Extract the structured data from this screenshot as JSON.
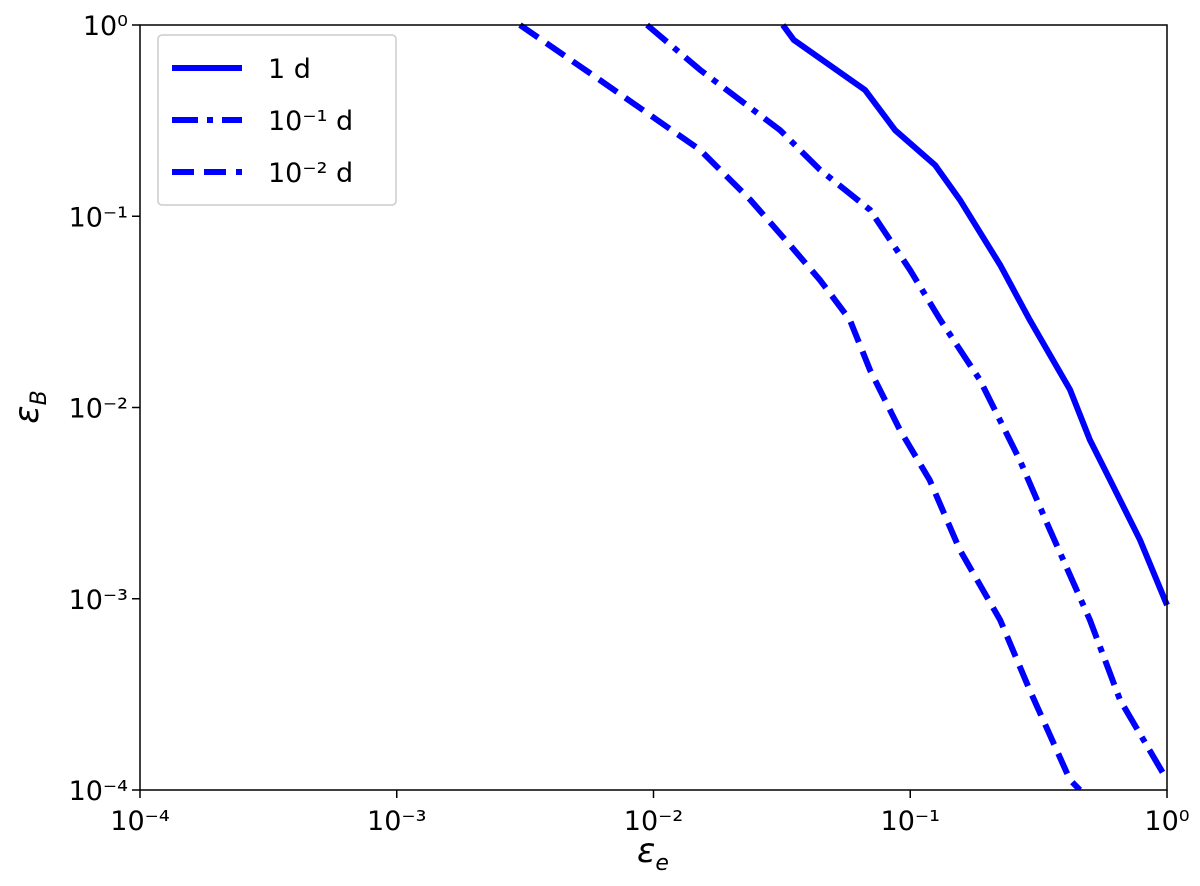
{
  "chart_data": {
    "type": "line",
    "xlabel": "ε",
    "xlabel_sub": "e",
    "ylabel": "ε",
    "ylabel_sub": "B",
    "xscale": "log",
    "yscale": "log",
    "xlim": [
      0.0001,
      1
    ],
    "ylim": [
      0.0001,
      1
    ],
    "xticks": [
      {
        "value": 0.0001,
        "label": "10⁻⁴"
      },
      {
        "value": 0.001,
        "label": "10⁻³"
      },
      {
        "value": 0.01,
        "label": "10⁻²"
      },
      {
        "value": 0.1,
        "label": "10⁻¹"
      },
      {
        "value": 1,
        "label": "10⁰"
      }
    ],
    "yticks": [
      {
        "value": 0.0001,
        "label": "10⁻⁴"
      },
      {
        "value": 0.001,
        "label": "10⁻³"
      },
      {
        "value": 0.01,
        "label": "10⁻²"
      },
      {
        "value": 0.1,
        "label": "10⁻¹"
      },
      {
        "value": 1,
        "label": "10⁰"
      }
    ],
    "legend": "upper left",
    "series": [
      {
        "name": "1 d",
        "color": "#0000ff",
        "style": "solid",
        "x": [
          0.0319,
          0.0352,
          0.0667,
          0.0873,
          0.125,
          0.156,
          0.224,
          0.292,
          0.419,
          0.501,
          0.6,
          0.785,
          1
        ],
        "values": [
          1,
          0.835,
          0.457,
          0.282,
          0.185,
          0.122,
          0.0556,
          0.0287,
          0.0124,
          0.00676,
          0.00418,
          0.00203,
          0.000927
        ]
      },
      {
        "name": "10⁻¹ d",
        "color": "#0000ff",
        "style": "dashdot",
        "x": [
          0.00944,
          0.0152,
          0.0311,
          0.0445,
          0.0697,
          0.0998,
          0.131,
          0.187,
          0.267,
          0.35,
          0.501,
          0.656,
          1
        ],
        "values": [
          1,
          0.582,
          0.282,
          0.175,
          0.108,
          0.0524,
          0.0287,
          0.0139,
          0.00531,
          0.00229,
          0.000774,
          0.000296,
          0.000113
        ]
      },
      {
        "name": "10⁻² d",
        "color": "#0000ff",
        "style": "dashed",
        "x": [
          0.00302,
          0.00619,
          0.0152,
          0.0238,
          0.034,
          0.0445,
          0.0582,
          0.0697,
          0.0912,
          0.119,
          0.156,
          0.224,
          0.292,
          0.419,
          0.458
        ],
        "values": [
          1,
          0.515,
          0.222,
          0.122,
          0.0707,
          0.0464,
          0.0287,
          0.0157,
          0.00762,
          0.00418,
          0.0018,
          0.000774,
          0.000333,
          0.000113,
          0.0001
        ]
      }
    ]
  }
}
